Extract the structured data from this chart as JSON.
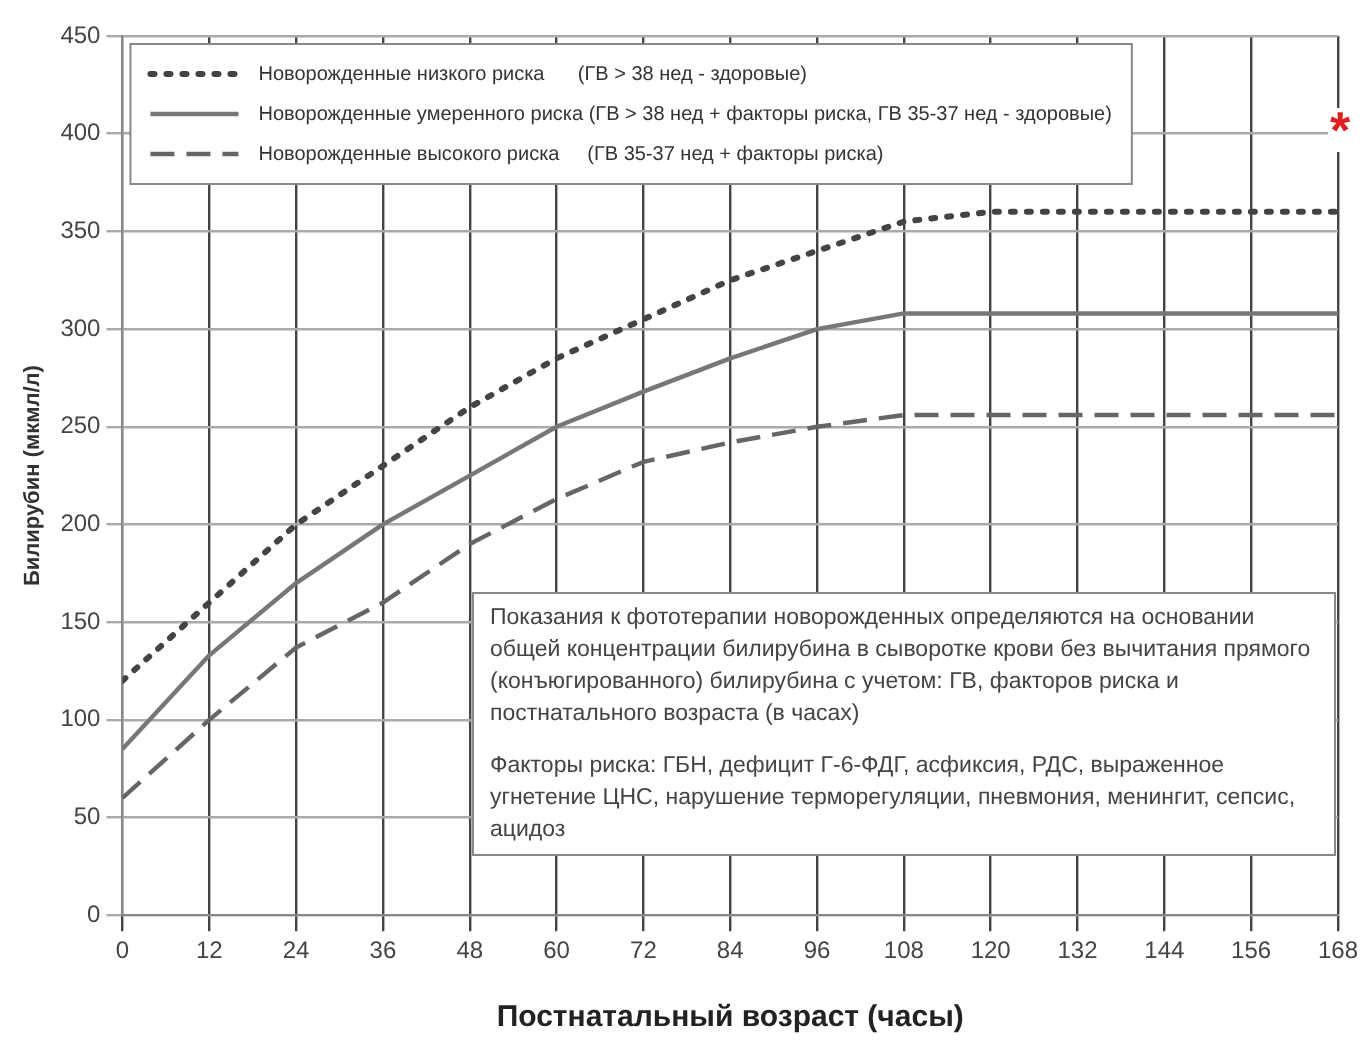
{
  "chart_data": {
    "type": "line",
    "xlabel": "Постнатальный возраст (часы)",
    "ylabel": "Билирубин (мкмл/л)",
    "x": [
      0,
      12,
      24,
      36,
      48,
      60,
      72,
      84,
      96,
      108,
      120,
      132,
      144,
      156,
      168
    ],
    "series": [
      {
        "name": "Новорожденные низкого риска      (ГВ > 38 нед - здоровые)",
        "color": "#444444",
        "line_style": "dotted",
        "values": [
          120,
          160,
          200,
          230,
          260,
          285,
          305,
          325,
          340,
          355,
          360,
          360,
          360,
          360,
          360
        ]
      },
      {
        "name": "Новорожденные умеренного риска (ГВ > 38 нед + факторы риска, ГВ 35-37 нед - здоровые)",
        "color": "#777777",
        "line_style": "solid",
        "values": [
          85,
          133,
          170,
          200,
          225,
          250,
          268,
          285,
          300,
          308,
          308,
          308,
          308,
          308,
          308
        ]
      },
      {
        "name": "Новорожденные высокого риска     (ГВ 35-37 нед + факторы риска)",
        "color": "#666666",
        "line_style": "dashed",
        "values": [
          60,
          100,
          137,
          160,
          190,
          213,
          232,
          242,
          250,
          256,
          256,
          256,
          256,
          256,
          256
        ]
      }
    ],
    "xlim": [
      0,
      168
    ],
    "xticks": [
      0,
      12,
      24,
      36,
      48,
      60,
      72,
      84,
      96,
      108,
      120,
      132,
      144,
      156,
      168
    ],
    "ylim": [
      0,
      450
    ],
    "yticks": [
      0,
      50,
      100,
      150,
      200,
      250,
      300,
      350,
      400,
      450
    ],
    "grid": true,
    "legend": "top left",
    "marker": "none",
    "annotations": [
      "Показания к фототерапии новорожденных определяются на основании общей концентрации билирубина в сыворотке крови без вычитания прямого (конъюгированного) билирубина с учетом: ГВ, факторов риска и постнатального возраста (в часах)",
      "Факторы риска: ГБН, дефицит Г-6-ФДГ, асфиксия, РДС, выраженное угнетение ЦНС, нарушение терморегуляции, пневмония, менингит, сепсис, ацидоз",
      "*"
    ]
  }
}
